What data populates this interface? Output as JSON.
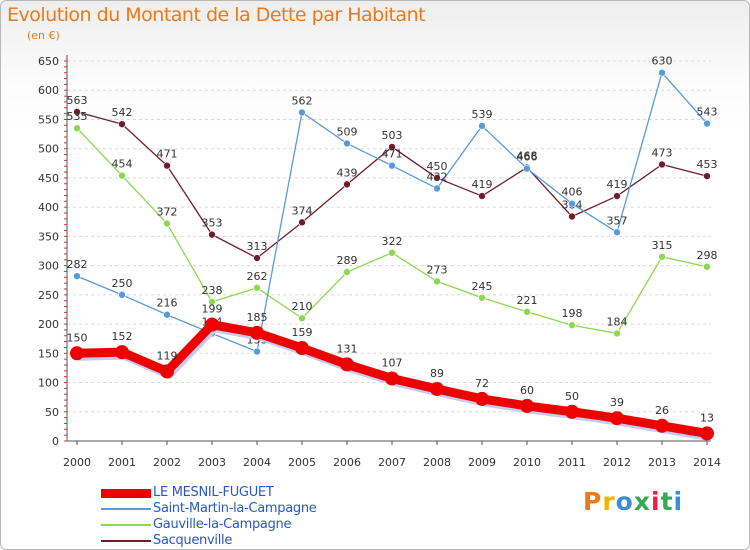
{
  "header": {
    "title": "Evolution du Montant de la Dette par Habitant",
    "unit": "(en €)"
  },
  "logo": {
    "text": "Proxiti",
    "colors": [
      "#f07818",
      "#f5b400",
      "#3a8fd0",
      "#36a852",
      "#e8204a",
      "#36a852",
      "#3a8fd0"
    ]
  },
  "chart_data": {
    "type": "line",
    "title": "Evolution du Montant de la Dette par Habitant",
    "ylabel": "(en €)",
    "xlabel": "",
    "ylim": [
      0,
      650
    ],
    "yticks": [
      0,
      50,
      100,
      150,
      200,
      250,
      300,
      350,
      400,
      450,
      500,
      550,
      600,
      650
    ],
    "grid": "horizontal dashed",
    "legend_position": "bottom-left",
    "categories": [
      "2000",
      "2001",
      "2002",
      "2003",
      "2004",
      "2005",
      "2006",
      "2007",
      "2008",
      "2009",
      "2010",
      "2011",
      "2012",
      "2013",
      "2014"
    ],
    "series": [
      {
        "name": "Sacquenville",
        "color": "#6e1e2a",
        "values": [
          563,
          542,
          471,
          353,
          313,
          374,
          439,
          503,
          450,
          419,
          468,
          384,
          419,
          473,
          453
        ],
        "labels": [
          "563",
          "542",
          "471",
          "353",
          "313",
          "374",
          "439",
          "503",
          "450",
          "419",
          "468",
          "384",
          "419",
          "473",
          "453"
        ]
      },
      {
        "name": "Gauville-la-Campagne",
        "color": "#8cd850",
        "values": [
          535,
          454,
          372,
          238,
          262,
          210,
          289,
          322,
          273,
          245,
          221,
          198,
          184,
          315,
          298
        ],
        "labels": [
          "535",
          "454",
          "372",
          "238",
          "262",
          "210",
          "289",
          "322",
          "273",
          "245",
          "221",
          "198",
          "184",
          "315",
          "298"
        ]
      },
      {
        "name": "Saint-Martin-la-Campagne",
        "color": "#5a9ad8",
        "values": [
          282,
          250,
          216,
          184,
          153,
          562,
          509,
          471,
          432,
          539,
          466,
          406,
          357,
          630,
          543
        ],
        "labels": [
          "282",
          "250",
          "216",
          "184",
          "153",
          "562",
          "509",
          "471",
          "432",
          "539",
          "466",
          "406",
          "357",
          "630",
          "543"
        ]
      },
      {
        "name": "LE MESNIL-FUGUET",
        "color": "#ee0000",
        "values": [
          150,
          152,
          119,
          199,
          185,
          159,
          131,
          107,
          89,
          72,
          60,
          50,
          39,
          26,
          13
        ],
        "labels": [
          "150",
          "152",
          "119",
          "199",
          "185",
          "159",
          "131",
          "107",
          "89",
          "72",
          "60",
          "50",
          "39",
          "26",
          "13"
        ]
      }
    ],
    "legend": [
      "LE MESNIL-FUGUET",
      "Saint-Martin-la-Campagne",
      "Gauville-la-Campagne",
      "Sacquenville"
    ]
  }
}
